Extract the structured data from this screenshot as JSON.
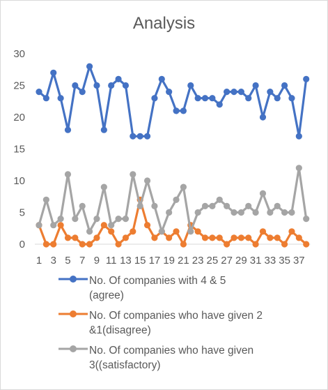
{
  "chart_data": {
    "type": "line",
    "title": "Analysis",
    "xlabel": "",
    "ylabel": "",
    "ylim": [
      0,
      30
    ],
    "yticks": [
      0,
      5,
      10,
      15,
      20,
      25,
      30
    ],
    "x": [
      1,
      2,
      3,
      4,
      5,
      6,
      7,
      8,
      9,
      10,
      11,
      12,
      13,
      14,
      15,
      16,
      17,
      18,
      19,
      20,
      21,
      22,
      23,
      24,
      25,
      26,
      27,
      28,
      29,
      30,
      31,
      32,
      33,
      34,
      35,
      36,
      37,
      38
    ],
    "xtick_labels": [
      "1",
      "3",
      "5",
      "7",
      "9",
      "11",
      "13",
      "15",
      "17",
      "19",
      "21",
      "23",
      "25",
      "27",
      "29",
      "31",
      "33",
      "35",
      "37"
    ],
    "grid": false,
    "legend_position": "bottom",
    "series": [
      {
        "name": "No. Of companies with 4 & 5 (agree)",
        "color": "#4472c4",
        "values": [
          24,
          23,
          27,
          23,
          18,
          25,
          24,
          28,
          25,
          18,
          25,
          26,
          25,
          17,
          17,
          17,
          23,
          26,
          24,
          21,
          21,
          25,
          23,
          23,
          23,
          22,
          24,
          24,
          24,
          23,
          25,
          20,
          24,
          23,
          25,
          23,
          17,
          26
        ]
      },
      {
        "name": "No. Of companies who have given 2 &1(disagree)",
        "color": "#ed7d31",
        "values": [
          3,
          0,
          0,
          3,
          1,
          1,
          0,
          0,
          1,
          3,
          2,
          0,
          1,
          2,
          7,
          3,
          1,
          2,
          1,
          2,
          0,
          3,
          2,
          1,
          1,
          1,
          0,
          1,
          1,
          1,
          0,
          2,
          1,
          1,
          0,
          2,
          1,
          0
        ]
      },
      {
        "name": "No. Of companies who have given 3((satisfactory)",
        "color": "#a5a5a5",
        "values": [
          3,
          7,
          3,
          4,
          11,
          4,
          6,
          2,
          4,
          9,
          3,
          4,
          4,
          11,
          6,
          10,
          6,
          2,
          5,
          7,
          9,
          2,
          5,
          6,
          6,
          7,
          6,
          5,
          5,
          6,
          5,
          8,
          5,
          6,
          5,
          5,
          12,
          4
        ]
      }
    ]
  },
  "legend": {
    "items": [
      {
        "line1": "No. Of companies with 4 & 5",
        "line2": "(agree)"
      },
      {
        "line1": "No. Of companies who have given 2",
        "line2": "&1(disagree)"
      },
      {
        "line1": "No. Of companies who have given",
        "line2": "3((satisfactory)"
      }
    ]
  }
}
